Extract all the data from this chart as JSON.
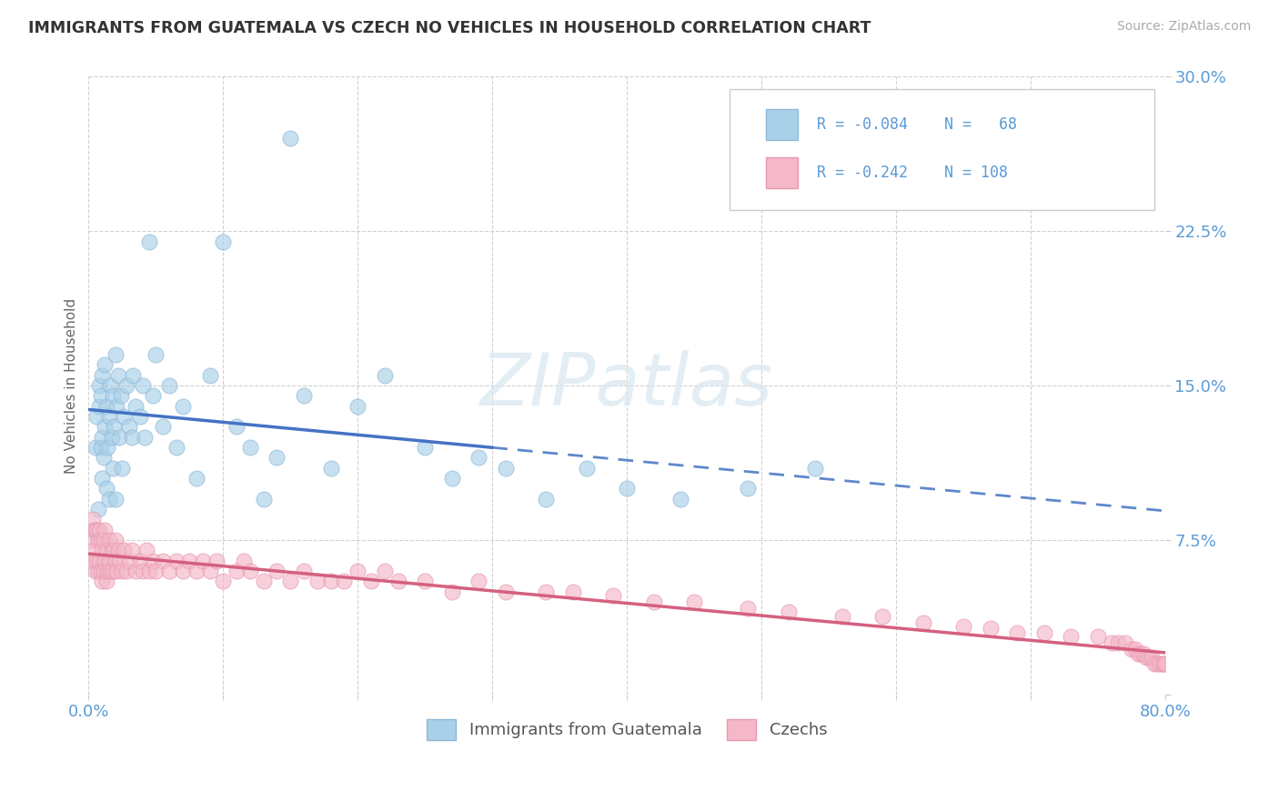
{
  "title": "IMMIGRANTS FROM GUATEMALA VS CZECH NO VEHICLES IN HOUSEHOLD CORRELATION CHART",
  "source": "Source: ZipAtlas.com",
  "ylabel": "No Vehicles in Household",
  "xlim": [
    0,
    0.8
  ],
  "ylim": [
    0,
    0.3
  ],
  "color_blue": "#a8d0e8",
  "color_pink": "#f4b8c8",
  "color_blue_line": "#4472c4",
  "color_pink_line": "#d46080",
  "color_tick": "#5b9bd5",
  "series1_label": "Immigrants from Guatemala",
  "series2_label": "Czechs",
  "R1": "-0.084",
  "N1": "68",
  "R2": "-0.242",
  "N2": "108",
  "blue_line_solid_end": 0.3,
  "blue_x": [
    0.005,
    0.006,
    0.007,
    0.008,
    0.008,
    0.009,
    0.009,
    0.01,
    0.01,
    0.01,
    0.011,
    0.012,
    0.012,
    0.013,
    0.013,
    0.014,
    0.015,
    0.015,
    0.016,
    0.017,
    0.018,
    0.018,
    0.019,
    0.02,
    0.02,
    0.021,
    0.022,
    0.023,
    0.024,
    0.025,
    0.026,
    0.028,
    0.03,
    0.032,
    0.033,
    0.035,
    0.038,
    0.04,
    0.042,
    0.045,
    0.048,
    0.05,
    0.055,
    0.06,
    0.065,
    0.07,
    0.08,
    0.09,
    0.1,
    0.11,
    0.12,
    0.13,
    0.14,
    0.15,
    0.16,
    0.18,
    0.2,
    0.22,
    0.25,
    0.27,
    0.29,
    0.31,
    0.34,
    0.37,
    0.4,
    0.44,
    0.49,
    0.54
  ],
  "blue_y": [
    0.12,
    0.135,
    0.09,
    0.14,
    0.15,
    0.12,
    0.145,
    0.105,
    0.125,
    0.155,
    0.115,
    0.13,
    0.16,
    0.1,
    0.14,
    0.12,
    0.095,
    0.135,
    0.15,
    0.125,
    0.11,
    0.145,
    0.13,
    0.095,
    0.165,
    0.14,
    0.155,
    0.125,
    0.145,
    0.11,
    0.135,
    0.15,
    0.13,
    0.125,
    0.155,
    0.14,
    0.135,
    0.15,
    0.125,
    0.22,
    0.145,
    0.165,
    0.13,
    0.15,
    0.12,
    0.14,
    0.105,
    0.155,
    0.22,
    0.13,
    0.12,
    0.095,
    0.115,
    0.27,
    0.145,
    0.11,
    0.14,
    0.155,
    0.12,
    0.105,
    0.115,
    0.11,
    0.095,
    0.11,
    0.1,
    0.095,
    0.1,
    0.11
  ],
  "pink_x": [
    0.002,
    0.003,
    0.003,
    0.004,
    0.004,
    0.005,
    0.005,
    0.006,
    0.006,
    0.007,
    0.007,
    0.008,
    0.008,
    0.009,
    0.009,
    0.01,
    0.01,
    0.011,
    0.011,
    0.012,
    0.012,
    0.013,
    0.013,
    0.014,
    0.015,
    0.015,
    0.016,
    0.017,
    0.018,
    0.019,
    0.02,
    0.02,
    0.021,
    0.022,
    0.023,
    0.025,
    0.026,
    0.028,
    0.03,
    0.032,
    0.035,
    0.038,
    0.04,
    0.043,
    0.045,
    0.048,
    0.05,
    0.055,
    0.06,
    0.065,
    0.07,
    0.075,
    0.08,
    0.085,
    0.09,
    0.095,
    0.1,
    0.11,
    0.115,
    0.12,
    0.13,
    0.14,
    0.15,
    0.16,
    0.17,
    0.18,
    0.19,
    0.2,
    0.21,
    0.22,
    0.23,
    0.25,
    0.27,
    0.29,
    0.31,
    0.34,
    0.36,
    0.39,
    0.42,
    0.45,
    0.49,
    0.52,
    0.56,
    0.59,
    0.62,
    0.65,
    0.67,
    0.69,
    0.71,
    0.73,
    0.75,
    0.76,
    0.765,
    0.77,
    0.775,
    0.778,
    0.78,
    0.782,
    0.784,
    0.786,
    0.788,
    0.79,
    0.792,
    0.794,
    0.796,
    0.798,
    0.799,
    0.8
  ],
  "pink_y": [
    0.075,
    0.065,
    0.085,
    0.07,
    0.08,
    0.06,
    0.08,
    0.065,
    0.08,
    0.06,
    0.075,
    0.065,
    0.08,
    0.06,
    0.075,
    0.055,
    0.07,
    0.06,
    0.075,
    0.065,
    0.08,
    0.055,
    0.07,
    0.06,
    0.065,
    0.075,
    0.06,
    0.07,
    0.06,
    0.07,
    0.065,
    0.075,
    0.06,
    0.07,
    0.065,
    0.06,
    0.07,
    0.06,
    0.065,
    0.07,
    0.06,
    0.065,
    0.06,
    0.07,
    0.06,
    0.065,
    0.06,
    0.065,
    0.06,
    0.065,
    0.06,
    0.065,
    0.06,
    0.065,
    0.06,
    0.065,
    0.055,
    0.06,
    0.065,
    0.06,
    0.055,
    0.06,
    0.055,
    0.06,
    0.055,
    0.055,
    0.055,
    0.06,
    0.055,
    0.06,
    0.055,
    0.055,
    0.05,
    0.055,
    0.05,
    0.05,
    0.05,
    0.048,
    0.045,
    0.045,
    0.042,
    0.04,
    0.038,
    0.038,
    0.035,
    0.033,
    0.032,
    0.03,
    0.03,
    0.028,
    0.028,
    0.025,
    0.025,
    0.025,
    0.022,
    0.022,
    0.02,
    0.02,
    0.02,
    0.018,
    0.018,
    0.018,
    0.015,
    0.015,
    0.015,
    0.015,
    0.015,
    0.015
  ]
}
